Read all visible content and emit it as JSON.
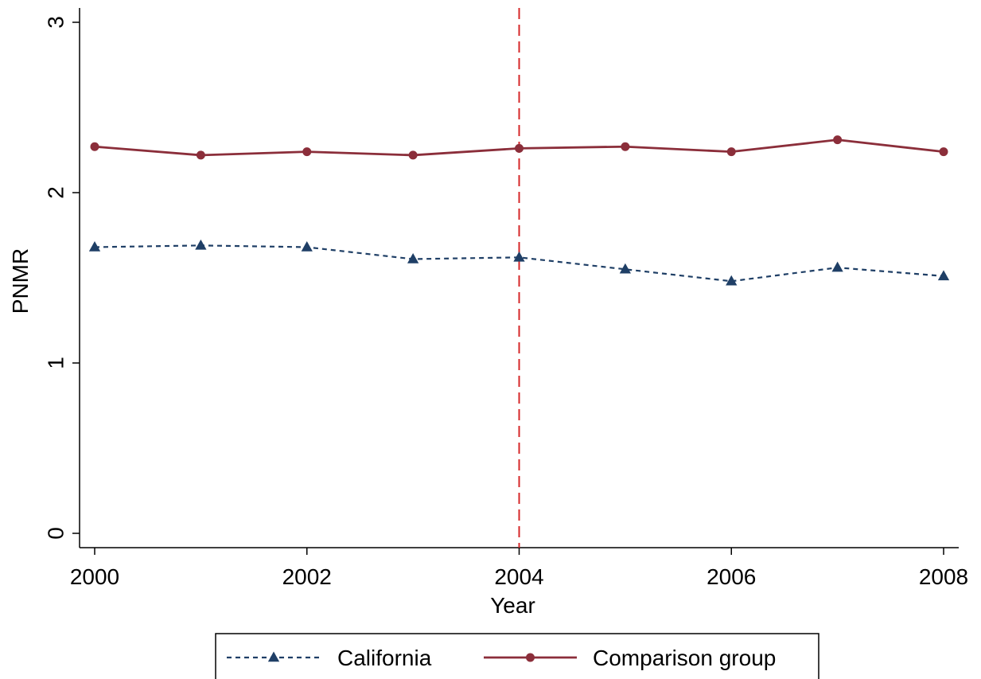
{
  "chart_data": {
    "type": "line",
    "title": "",
    "xlabel": "Year",
    "ylabel": "PNMR",
    "x": [
      2000,
      2001,
      2002,
      2003,
      2004,
      2005,
      2006,
      2007,
      2008
    ],
    "xticks": [
      "2000",
      "2002",
      "2004",
      "2006",
      "2008"
    ],
    "yticks": [
      "0",
      "1",
      "2",
      "3"
    ],
    "xlim": [
      2000,
      2008
    ],
    "ylim": [
      0,
      3
    ],
    "grid": false,
    "legend_position": "bottom",
    "reference_line": {
      "axis": "x",
      "value": 2004,
      "style": "dashed",
      "color": "#d62728"
    },
    "series": [
      {
        "name": "California",
        "values": [
          1.68,
          1.69,
          1.68,
          1.61,
          1.62,
          1.55,
          1.48,
          1.56,
          1.51
        ],
        "color": "#1f3f66",
        "style": "dashed",
        "marker": "triangle"
      },
      {
        "name": "Comparison group",
        "values": [
          2.27,
          2.22,
          2.24,
          2.22,
          2.26,
          2.27,
          2.24,
          2.31,
          2.24
        ],
        "color": "#8b2e3a",
        "style": "solid",
        "marker": "circle"
      }
    ]
  }
}
